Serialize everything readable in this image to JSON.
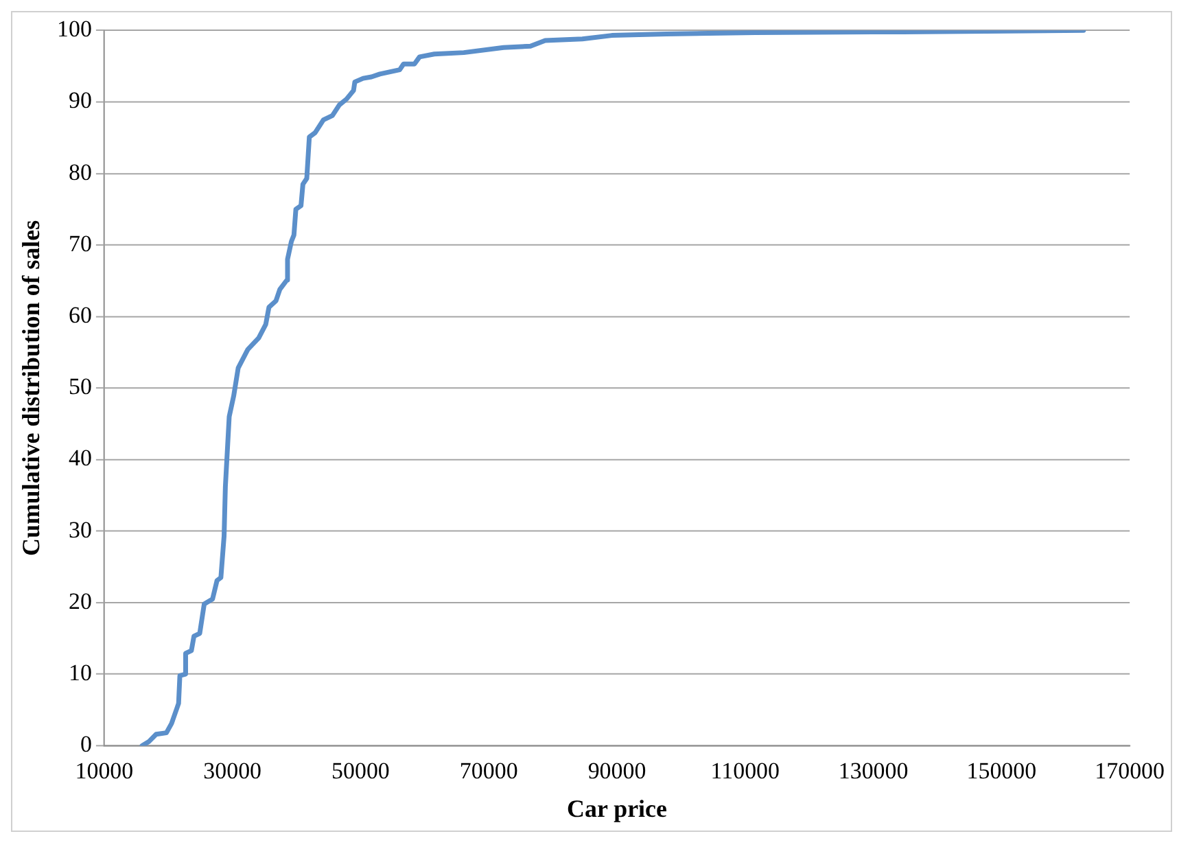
{
  "chart_data": {
    "type": "line",
    "xlabel": "Car price",
    "ylabel": "Cumulative distribution of sales",
    "xlim": [
      10000,
      170000
    ],
    "xticks": [
      10000,
      30000,
      50000,
      70000,
      90000,
      110000,
      130000,
      150000,
      170000
    ],
    "ylim": [
      0,
      100
    ],
    "yticks": [
      0,
      10,
      20,
      30,
      40,
      50,
      60,
      70,
      80,
      90,
      100
    ],
    "grid": "y",
    "legend": false,
    "marker": "none",
    "line_style": "solid",
    "series": [
      {
        "color": "#5b8fca",
        "x": [
          15900,
          17000,
          18100,
          19700,
          20500,
          21600,
          21800,
          22700,
          22700,
          23600,
          24000,
          24900,
          25600,
          26900,
          27600,
          28200,
          28700,
          28900,
          29500,
          30200,
          30900,
          32400,
          34100,
          35200,
          35700,
          36800,
          37400,
          38500,
          38600,
          39200,
          39600,
          39900,
          40700,
          41000,
          41600,
          42000,
          42900,
          44200,
          45600,
          46700,
          47800,
          48900,
          49100,
          50400,
          51700,
          53000,
          56100,
          56700,
          58400,
          59200,
          61500,
          66100,
          72300,
          76500,
          78800,
          84600,
          89200,
          97700,
          111600,
          134700,
          162800
        ],
        "values": [
          0,
          0.6,
          1.6,
          1.8,
          3.1,
          5.9,
          9.8,
          10,
          12.9,
          13.3,
          15.3,
          15.7,
          19.8,
          20.5,
          23.1,
          23.5,
          29.3,
          36.2,
          46,
          48.9,
          52.8,
          55.4,
          57,
          58.9,
          61.3,
          62.2,
          63.8,
          65.1,
          68,
          70.5,
          71.4,
          75,
          75.5,
          78.5,
          79.3,
          85.1,
          85.7,
          87.5,
          88.1,
          89.6,
          90.4,
          91.6,
          92.8,
          93.3,
          93.5,
          93.9,
          94.5,
          95.3,
          95.3,
          96.3,
          96.7,
          96.9,
          97.6,
          97.8,
          98.6,
          98.8,
          99.3,
          99.5,
          99.7,
          99.8,
          100
        ]
      }
    ]
  }
}
